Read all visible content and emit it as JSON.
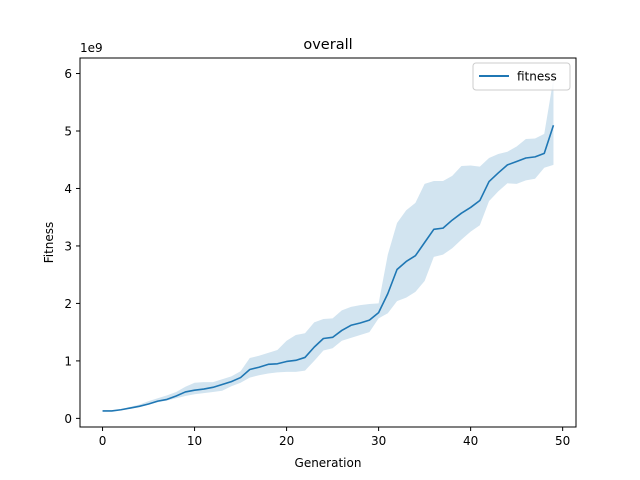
{
  "chart_data": {
    "type": "line",
    "title": "overall",
    "xlabel": "Generation",
    "ylabel": "Fitness",
    "y_offset_label": "1e9",
    "xlim": [
      -2.45,
      51.45
    ],
    "ylim": [
      -0.15,
      6.27
    ],
    "x_ticks": [
      0,
      10,
      20,
      30,
      40,
      50
    ],
    "y_ticks": [
      0,
      1,
      2,
      3,
      4,
      5,
      6
    ],
    "grid": false,
    "legend_position": "upper right",
    "colors": {
      "line": "#1f77b4",
      "band": "#1f77b4",
      "band_opacity": 0.2
    },
    "series": [
      {
        "name": "fitness",
        "x": [
          0,
          1,
          2,
          3,
          4,
          5,
          6,
          7,
          8,
          9,
          10,
          11,
          12,
          13,
          14,
          15,
          16,
          17,
          18,
          19,
          20,
          21,
          22,
          23,
          24,
          25,
          26,
          27,
          28,
          29,
          30,
          31,
          32,
          33,
          34,
          35,
          36,
          37,
          38,
          39,
          40,
          41,
          42,
          43,
          44,
          45,
          46,
          47,
          48,
          49
        ],
        "values": [
          0.13,
          0.13,
          0.15,
          0.18,
          0.21,
          0.25,
          0.3,
          0.33,
          0.39,
          0.46,
          0.49,
          0.51,
          0.54,
          0.59,
          0.64,
          0.71,
          0.85,
          0.89,
          0.94,
          0.95,
          0.99,
          1.01,
          1.06,
          1.24,
          1.39,
          1.41,
          1.53,
          1.62,
          1.66,
          1.71,
          1.84,
          2.17,
          2.59,
          2.73,
          2.83,
          3.06,
          3.29,
          3.31,
          3.45,
          3.57,
          3.67,
          3.79,
          4.12,
          4.27,
          4.41,
          4.47,
          4.53,
          4.55,
          4.61,
          5.1
        ],
        "upper": [
          0.13,
          0.13,
          0.16,
          0.2,
          0.24,
          0.3,
          0.35,
          0.4,
          0.46,
          0.55,
          0.62,
          0.63,
          0.63,
          0.68,
          0.73,
          0.82,
          1.05,
          1.09,
          1.14,
          1.19,
          1.35,
          1.45,
          1.48,
          1.67,
          1.73,
          1.74,
          1.88,
          1.94,
          1.97,
          1.99,
          2.0,
          2.85,
          3.4,
          3.62,
          3.75,
          4.08,
          4.13,
          4.13,
          4.22,
          4.39,
          4.4,
          4.38,
          4.53,
          4.6,
          4.64,
          4.73,
          4.86,
          4.87,
          4.95,
          5.91
        ],
        "lower": [
          0.13,
          0.13,
          0.15,
          0.17,
          0.2,
          0.24,
          0.28,
          0.31,
          0.35,
          0.39,
          0.42,
          0.44,
          0.46,
          0.48,
          0.56,
          0.62,
          0.71,
          0.75,
          0.78,
          0.8,
          0.81,
          0.81,
          0.83,
          1.0,
          1.18,
          1.22,
          1.35,
          1.4,
          1.45,
          1.5,
          1.74,
          1.83,
          2.04,
          2.1,
          2.2,
          2.39,
          2.81,
          2.85,
          2.96,
          3.11,
          3.25,
          3.36,
          3.78,
          3.95,
          4.09,
          4.08,
          4.14,
          4.17,
          4.36,
          4.41
        ]
      }
    ]
  }
}
